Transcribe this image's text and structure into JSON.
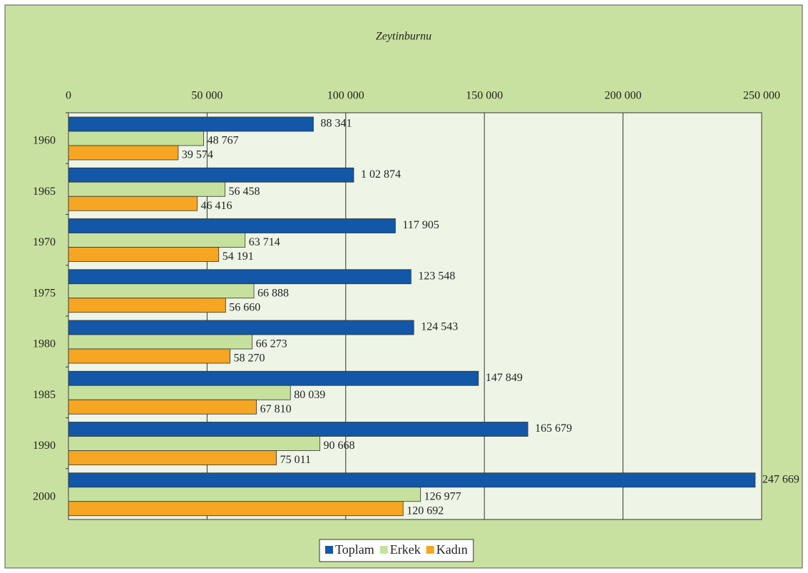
{
  "chart_data": {
    "type": "hbar",
    "title": "Zeytinburnu",
    "categories": [
      "1960",
      "1965",
      "1970",
      "1975",
      "1980",
      "1985",
      "1990",
      "2000"
    ],
    "series": [
      {
        "name": "Toplam",
        "color": "#1257a8",
        "values": [
          88341,
          102874,
          117905,
          123548,
          124543,
          147849,
          165679,
          247669
        ],
        "value_labels": [
          "88 341",
          "1 02 874",
          "117 905",
          "123 548",
          "124 543",
          "147 849",
          "165 679",
          "247 669"
        ]
      },
      {
        "name": "Erkek",
        "color": "#c6e19d",
        "values": [
          48767,
          56458,
          63714,
          66888,
          66273,
          80039,
          90668,
          126977
        ],
        "value_labels": [
          "48 767",
          "56 458",
          "63 714",
          "66 888",
          "66 273",
          "80 039",
          "90 668",
          "126 977"
        ]
      },
      {
        "name": "Kadın",
        "color": "#f6a623",
        "values": [
          39574,
          46416,
          54191,
          56660,
          58270,
          67810,
          75011,
          120692
        ],
        "value_labels": [
          "39 574",
          "46 416",
          "54 191",
          "56 660",
          "58 270",
          "67 810",
          "75 011",
          "120 692"
        ]
      }
    ],
    "xlim": [
      0,
      250000
    ],
    "xticks": [
      0,
      {
        "value": 50000,
        "label": "50 000"
      },
      {
        "value": 100000,
        "label": "100 000"
      },
      {
        "value": 150000,
        "label": "150 000"
      },
      {
        "value": 200000,
        "label": "200 000"
      },
      {
        "value": 250000,
        "label": "250 000"
      }
    ],
    "grid": true,
    "legend": "bottom"
  }
}
